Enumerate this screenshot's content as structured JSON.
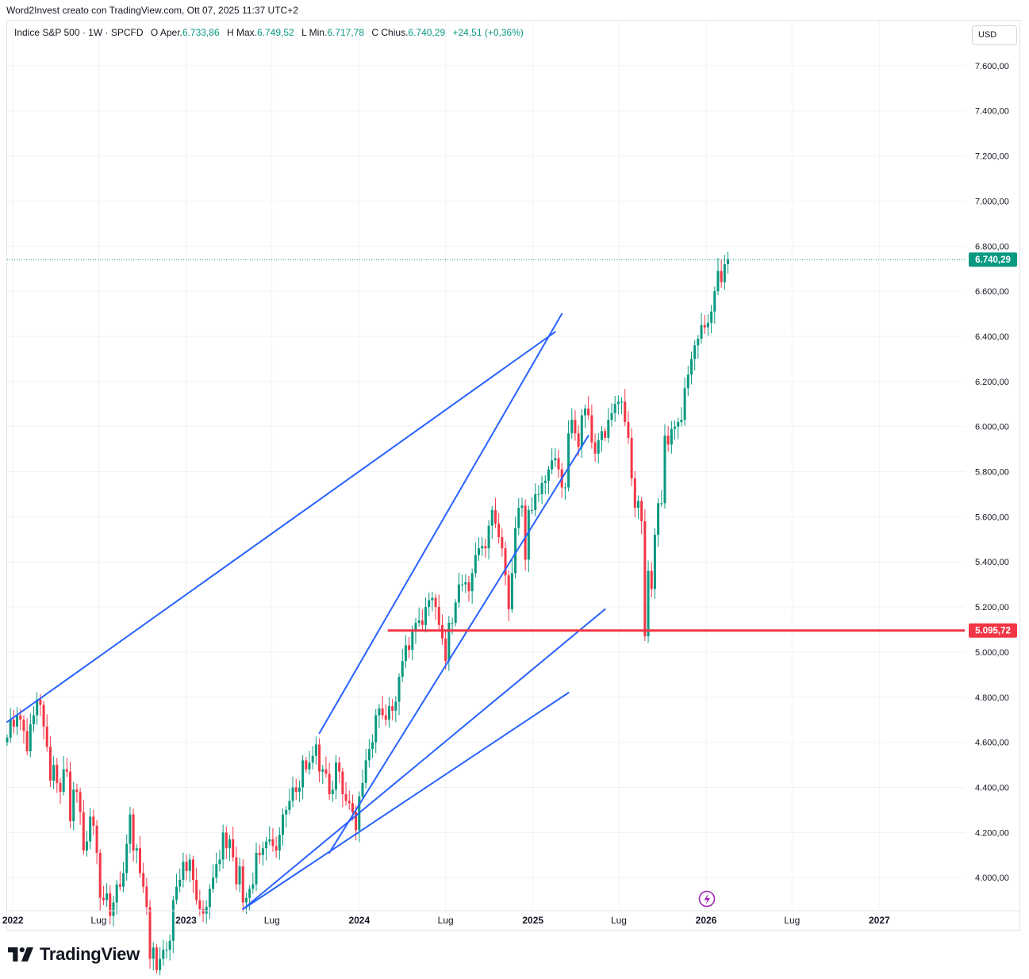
{
  "caption": "Word2Invest creato con TradingView.com, Ott 07, 2025 11:37 UTC+2",
  "legend": {
    "symbol": "Indice S&P 500 · 1W · SPCFD",
    "open_label": "O",
    "open_prefix": "Aper.",
    "open": "6.733,86",
    "high_label": "H",
    "high_prefix": "Max.",
    "high": "6.749,52",
    "low_label": "L",
    "low_prefix": "Min.",
    "low": "6.717,78",
    "close_label": "C",
    "close_prefix": "Chius.",
    "close": "6.740,29",
    "change": "+24,51 (+0,36%)"
  },
  "currency_button": "USD",
  "brand": "TradingView",
  "colors": {
    "up": "#089981",
    "down": "#f23645",
    "trendline": "#2962ff",
    "level_line": "#f23645",
    "grid": "#f0f3fa"
  },
  "chart_data": {
    "type": "candlestick",
    "timeframe": "1W",
    "x_range": [
      "2021-12-20",
      "2027-06-30"
    ],
    "y_range": [
      3860,
      7800
    ],
    "y_ticks": [
      {
        "value": 4000,
        "label": "4.000,00"
      },
      {
        "value": 4200,
        "label": "4.200,00"
      },
      {
        "value": 4400,
        "label": "4.400,00"
      },
      {
        "value": 4600,
        "label": "4.600,00"
      },
      {
        "value": 4800,
        "label": "4.800,00"
      },
      {
        "value": 5000,
        "label": "5.000,00"
      },
      {
        "value": 5200,
        "label": "5.200,00"
      },
      {
        "value": 5400,
        "label": "5.400,00"
      },
      {
        "value": 5600,
        "label": "5.600,00"
      },
      {
        "value": 5800,
        "label": "5.800,00"
      },
      {
        "value": 6000,
        "label": "6.000,00"
      },
      {
        "value": 6200,
        "label": "6.200,00"
      },
      {
        "value": 6400,
        "label": "6.400,00"
      },
      {
        "value": 6600,
        "label": "6.600,00"
      },
      {
        "value": 6800,
        "label": "6.800,00"
      },
      {
        "value": 7000,
        "label": "7.000,00"
      },
      {
        "value": 7200,
        "label": "7.200,00"
      },
      {
        "value": 7400,
        "label": "7.400,00"
      },
      {
        "value": 7600,
        "label": "7.600,00"
      }
    ],
    "x_ticks": [
      {
        "date": "2022-01-01",
        "label": "2022",
        "bold": true
      },
      {
        "date": "2022-07-01",
        "label": "Lug",
        "bold": false
      },
      {
        "date": "2023-01-01",
        "label": "2023",
        "bold": true
      },
      {
        "date": "2023-07-01",
        "label": "Lug",
        "bold": false
      },
      {
        "date": "2024-01-01",
        "label": "2024",
        "bold": true
      },
      {
        "date": "2024-07-01",
        "label": "Lug",
        "bold": false
      },
      {
        "date": "2025-01-01",
        "label": "2025",
        "bold": true
      },
      {
        "date": "2025-07-01",
        "label": "Lug",
        "bold": false
      },
      {
        "date": "2026-01-01",
        "label": "2026",
        "bold": true
      },
      {
        "date": "2026-07-01",
        "label": "Lug",
        "bold": false
      },
      {
        "date": "2027-01-01",
        "label": "2027",
        "bold": true
      }
    ],
    "last_price": {
      "value": 6740.29,
      "label": "6.740,29"
    },
    "horizontal_level": {
      "value": 5095.72,
      "label": "5.095,72"
    },
    "trendlines": [
      {
        "start": [
          "2021-12-20",
          4690
        ],
        "end": [
          "2025-02-17",
          6420
        ]
      },
      {
        "start": [
          "2023-10-09",
          4640
        ],
        "end": [
          "2025-03-03",
          6500
        ]
      },
      {
        "start": [
          "2023-10-30",
          4110
        ],
        "end": [
          "2025-04-28",
          5960
        ]
      },
      {
        "start": [
          "2023-05-01",
          3860
        ],
        "end": [
          "2025-06-02",
          5190
        ]
      },
      {
        "start": [
          "2023-05-01",
          3860
        ],
        "end": [
          "2025-03-17",
          4820
        ]
      }
    ],
    "series": [
      {
        "name": "Indice S&P 500",
        "closes": [
          4620,
          4700,
          4670,
          4720,
          4700,
          4650,
          4560,
          4680,
          4720,
          4790,
          4766,
          4670,
          4580,
          4430,
          4500,
          4420,
          4380,
          4480,
          4470,
          4250,
          4390,
          4380,
          4290,
          4120,
          4160,
          4270,
          4230,
          4110,
          3910,
          3900,
          3930,
          3830,
          3890,
          3970,
          3960,
          4020,
          4150,
          4280,
          4120,
          4130,
          4020,
          3960,
          3870,
          3640,
          3690,
          3590,
          3640,
          3680,
          3680,
          3720,
          3900,
          3960,
          3990,
          4070,
          4030,
          4080,
          3990,
          3900,
          3860,
          3840,
          3870,
          3950,
          4000,
          4060,
          4080,
          4200,
          4130,
          4170,
          4090,
          3970,
          4050,
          3890,
          3910,
          3950,
          3970,
          4110,
          4100,
          4130,
          4160,
          4170,
          4140,
          4120,
          4190,
          4280,
          4300,
          4340,
          4400,
          4380,
          4400,
          4520,
          4480,
          4510,
          4540,
          4590,
          4470,
          4480,
          4460,
          4370,
          4390,
          4510,
          4470,
          4370,
          4340,
          4330,
          4290,
          4210,
          4360,
          4420,
          4520,
          4570,
          4600,
          4720,
          4750,
          4720,
          4700,
          4760,
          4740,
          4780,
          4890,
          4960,
          5030,
          5010,
          5090,
          5130,
          5140,
          5120,
          5200,
          5230,
          5240,
          5200,
          5120,
          5060,
          4960,
          5130,
          5130,
          5220,
          5300,
          5300,
          5310,
          5270,
          5350,
          5430,
          5460,
          5470,
          5460,
          5560,
          5630,
          5570,
          5510,
          5460,
          5340,
          5190,
          5350,
          5550,
          5640,
          5650,
          5410,
          5630,
          5630,
          5700,
          5700,
          5750,
          5760,
          5810,
          5850,
          5860,
          5810,
          5730,
          5730,
          5970,
          6030,
          5970,
          5910,
          6050,
          6080,
          6050,
          5930,
          5880,
          5940,
          5980,
          5950,
          6030,
          6060,
          6100,
          6110,
          6110,
          6020,
          5950,
          5770,
          5640,
          5670,
          5580,
          5070,
          5360,
          5280,
          5520,
          5660,
          5660,
          5960,
          5920,
          5990,
          6000,
          6020,
          6030,
          6170,
          6230,
          6300,
          6360,
          6390,
          6450,
          6440,
          6460,
          6510,
          6600,
          6690,
          6640,
          6720,
          6740
        ]
      }
    ]
  }
}
